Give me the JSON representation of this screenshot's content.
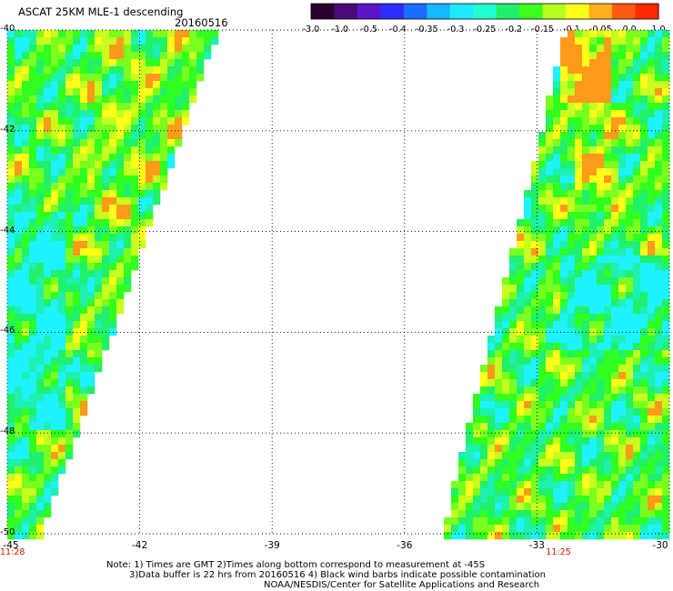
{
  "header": {
    "title": "ASCAT 25KM MLE-1 descending",
    "date": "20160516"
  },
  "colorbar": {
    "tick_labels": [
      "-3.0",
      "-1.0",
      "-0.5",
      "-0.4",
      "-0.35",
      "-0.3",
      "-0.25",
      "-0.2",
      "-0.15",
      "-0.1",
      "-0.05",
      "0.0",
      "1.0"
    ],
    "colors": [
      "#2a002e",
      "#4a0a78",
      "#5a16c8",
      "#2c2cff",
      "#1a6dff",
      "#16b8ff",
      "#1ee8ff",
      "#20ffd0",
      "#1ef06a",
      "#3cff1e",
      "#b4ff1e",
      "#ffff1a",
      "#ffb01a",
      "#ff5a10",
      "#ff2a00"
    ]
  },
  "map": {
    "lat_labels": [
      "-40",
      "-42",
      "-44",
      "-46",
      "-48",
      "-50"
    ],
    "lon_labels": [
      "-45",
      "-42",
      "-39",
      "-36",
      "-33",
      "-30"
    ],
    "lat_range": [
      -50,
      -40
    ],
    "lon_range": [
      -45,
      -30
    ],
    "time_labels": [
      {
        "text": "11:28",
        "lon": -45
      },
      {
        "text": "11:25",
        "lon": -33
      }
    ],
    "swaths": [
      {
        "name": "west",
        "top_right_lon": -40.2,
        "bottom_right_lon": -44.2
      },
      {
        "name": "east",
        "top_left_lon": -32.4,
        "bottom_left_lon": -35.2
      }
    ]
  },
  "notes": {
    "line1": "Note: 1) Times are GMT 2)Times along bottom correspond to measurement at -45S",
    "line2": "3)Data buffer is 22 hrs from 20160516 4) Black wind barbs indicate possible contamination",
    "line3": "NOAA/NESDIS/Center for Satellite Applications and Research"
  }
}
